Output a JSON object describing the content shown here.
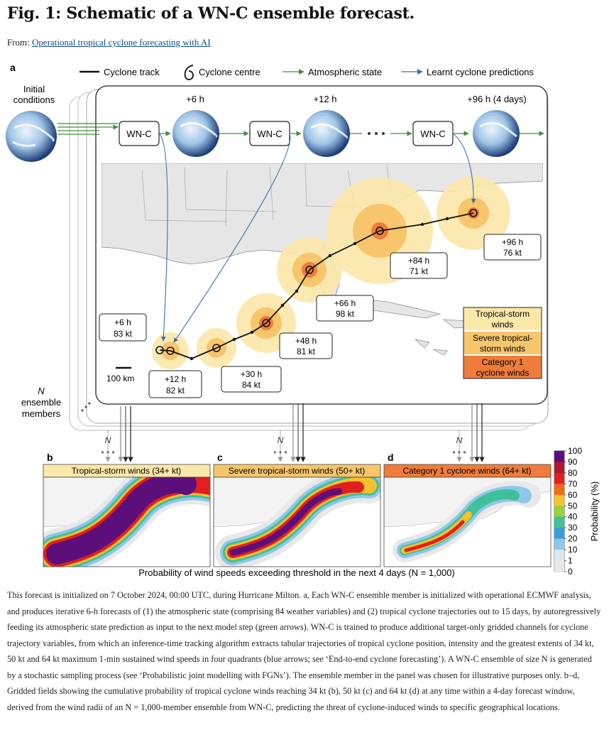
{
  "figure": {
    "title": "Fig. 1: Schematic of a WN-C ensemble forecast.",
    "from_label": "From: ",
    "source_link": "Operational tropical cyclone forecasting with AI"
  },
  "panel_a": {
    "label": "a",
    "legend": {
      "track": "Cyclone track",
      "centre": "Cyclone centre",
      "atmos": "Atmospheric state",
      "learnt": "Learnt cyclone predictions"
    },
    "initial_line1": "Initial",
    "initial_line2": "conditions",
    "model": "WN-C",
    "time_6h": "+6 h",
    "time_12h": "+12 h",
    "time_96h": "+96 h (4 days)",
    "ensemble_n": "N",
    "ensemble_line1": "ensemble",
    "ensemble_line2": "members",
    "scale": "100 km",
    "boxes": [
      {
        "time": "+6 h",
        "speed": "83 kt"
      },
      {
        "time": "+12 h",
        "speed": "82 kt"
      },
      {
        "time": "+30 h",
        "speed": "84 kt"
      },
      {
        "time": "+48 h",
        "speed": "81 kt"
      },
      {
        "time": "+66 h",
        "speed": "98 kt"
      },
      {
        "time": "+84 h",
        "speed": "71 kt"
      },
      {
        "time": "+96 h",
        "speed": "76 kt"
      }
    ],
    "wind_legend": [
      {
        "line1": "Tropical-storm",
        "line2": "winds",
        "color": "#fbe7a8"
      },
      {
        "line1": "Severe tropical-",
        "line2": "storm winds",
        "color": "#f7c56b"
      },
      {
        "line1": "Category 1",
        "line2": "cyclone winds",
        "color": "#ef7c3a"
      }
    ]
  },
  "panels_bcd": [
    {
      "label": "b",
      "title": "Tropical-storm winds (34+ kt)",
      "color": "#fbe7a8"
    },
    {
      "label": "c",
      "title": "Severe tropical-storm winds (50+ kt)",
      "color": "#f7c56b"
    },
    {
      "label": "d",
      "title": "Category 1 cyclone winds (64+ kt)",
      "color": "#ef7c3a"
    }
  ],
  "n_label": "N",
  "bottom_label": "Probability of wind speeds exceeding threshold in the next 4 days (N = 1,000)",
  "colorbar": {
    "title": "Probability (%)",
    "ticks": [
      "100",
      "90",
      "80",
      "70",
      "60",
      "50",
      "40",
      "30",
      "20",
      "10",
      "1",
      "0"
    ],
    "colors": [
      "#5c0f7a",
      "#b0182b",
      "#e02020",
      "#f06a1a",
      "#f5c12d",
      "#9ecf3a",
      "#3fbf9a",
      "#3a9fd6",
      "#8cc8ea",
      "#d6e8f2",
      "#e8e8e8"
    ]
  },
  "caption_text": "This forecast is initialized on 7 October 2024, 00:00 UTC, during Hurricane Milton. a, Each WN-C ensemble member is initialized with operational ECMWF analysis, and produces iterative 6-h forecasts of (1) the atmospheric state (comprising 84 weather variables) and (2) tropical cyclone trajectories out to 15 days, by autoregressively feeding its atmospheric state prediction as input to the next model step (green arrows). WN-C is trained to produce additional target-only gridded channels for cyclone trajectory variables, from which an inference-time tracking algorithm extracts tabular trajectories of tropical cyclone position, intensity and the greatest extents of 34 kt, 50 kt and 64 kt maximum 1-min sustained wind speeds in four quadrants (blue arrows; see ‘End-to-end cyclone forecasting’). A WN-C ensemble of size N is generated by a stochastic sampling process (see ‘Probabilistic joint modelling with FGNs’). The ensemble member in the panel was chosen for illustrative purposes only. b–d, Gridded fields showing the cumulative probability of tropical cyclone winds reaching 34 kt (b), 50 kt (c) and 64 kt (d) at any time within a 4-day forecast window, derived from the wind radii of an N = 1,000-member ensemble from WN-C, predicting the threat of cyclone-induced winds to specific geographical locations."
}
